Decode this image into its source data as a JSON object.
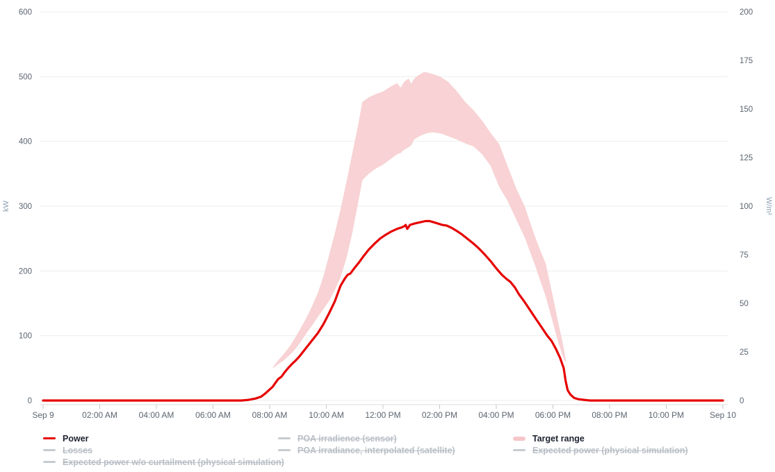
{
  "colors": {
    "power_line": "#e60000",
    "target_band": "#f8d2d4",
    "grid_line": "#ededed",
    "axis_line": "#dcdcdc",
    "axis_tick": "#c8c8c8",
    "tick_label": "#5b6570",
    "unit_label": "#8da0b4",
    "legend_active_text": "#1d2330",
    "legend_inactive_text": "#b9bfc6",
    "legend_inactive_swatch": "#c6cbd1"
  },
  "chart_data": {
    "type": "line",
    "title": "",
    "grid": true,
    "x": {
      "tick_labels": [
        "Sep 9",
        "02:00 AM",
        "04:00 AM",
        "06:00 AM",
        "08:00 AM",
        "10:00 AM",
        "12:00 PM",
        "02:00 PM",
        "04:00 PM",
        "06:00 PM",
        "08:00 PM",
        "10:00 PM",
        "Sep 10"
      ],
      "tick_hours": [
        0,
        2,
        4,
        6,
        8,
        10,
        12,
        14,
        16,
        18,
        20,
        22,
        24
      ],
      "range_hours": [
        0,
        24
      ]
    },
    "y_left": {
      "unit": "kW",
      "range": [
        0,
        600
      ],
      "ticks": [
        0,
        100,
        200,
        300,
        400,
        500,
        600
      ]
    },
    "y_right": {
      "unit": "W/m²",
      "range": [
        0,
        200
      ],
      "ticks": [
        0,
        25,
        50,
        75,
        100,
        125,
        150,
        175,
        200
      ]
    },
    "series": [
      {
        "name": "Power",
        "axis": "left",
        "unit": "kW",
        "color": "#e60000",
        "points": [
          [
            0,
            0
          ],
          [
            1,
            0
          ],
          [
            2,
            0
          ],
          [
            3,
            0
          ],
          [
            4,
            0
          ],
          [
            5,
            0
          ],
          [
            6,
            0
          ],
          [
            6.5,
            0
          ],
          [
            7,
            0
          ],
          [
            7.25,
            1
          ],
          [
            7.5,
            3
          ],
          [
            7.7,
            6
          ],
          [
            7.85,
            11
          ],
          [
            8,
            17
          ],
          [
            8.1,
            21
          ],
          [
            8.2,
            27
          ],
          [
            8.3,
            33
          ],
          [
            8.42,
            37
          ],
          [
            8.5,
            42
          ],
          [
            8.65,
            50
          ],
          [
            8.8,
            57
          ],
          [
            8.9,
            61
          ],
          [
            9.05,
            68
          ],
          [
            9.3,
            82
          ],
          [
            9.5,
            93
          ],
          [
            9.7,
            104
          ],
          [
            9.9,
            118
          ],
          [
            10.1,
            135
          ],
          [
            10.3,
            153
          ],
          [
            10.5,
            177
          ],
          [
            10.65,
            188
          ],
          [
            10.75,
            194
          ],
          [
            10.85,
            196
          ],
          [
            11,
            205
          ],
          [
            11.15,
            213
          ],
          [
            11.3,
            222
          ],
          [
            11.5,
            233
          ],
          [
            11.7,
            242
          ],
          [
            11.9,
            250
          ],
          [
            12.1,
            256
          ],
          [
            12.3,
            261
          ],
          [
            12.5,
            265
          ],
          [
            12.65,
            267
          ],
          [
            12.75,
            269
          ],
          [
            12.8,
            271
          ],
          [
            12.86,
            265
          ],
          [
            12.95,
            271
          ],
          [
            13.1,
            273
          ],
          [
            13.3,
            275
          ],
          [
            13.5,
            277
          ],
          [
            13.65,
            277
          ],
          [
            13.8,
            275
          ],
          [
            13.95,
            273
          ],
          [
            14.1,
            271
          ],
          [
            14.25,
            270
          ],
          [
            14.4,
            267
          ],
          [
            14.6,
            262
          ],
          [
            14.8,
            256
          ],
          [
            15,
            249
          ],
          [
            15.2,
            242
          ],
          [
            15.4,
            234
          ],
          [
            15.6,
            225
          ],
          [
            15.8,
            215
          ],
          [
            16,
            204
          ],
          [
            16.2,
            194
          ],
          [
            16.35,
            188
          ],
          [
            16.5,
            183
          ],
          [
            16.65,
            175
          ],
          [
            16.8,
            164
          ],
          [
            17,
            152
          ],
          [
            17.2,
            139
          ],
          [
            17.4,
            126
          ],
          [
            17.6,
            113
          ],
          [
            17.8,
            100
          ],
          [
            17.95,
            92
          ],
          [
            18.1,
            80
          ],
          [
            18.25,
            66
          ],
          [
            18.38,
            50
          ],
          [
            18.45,
            30
          ],
          [
            18.52,
            16
          ],
          [
            18.62,
            9
          ],
          [
            18.75,
            4
          ],
          [
            18.9,
            2
          ],
          [
            19.1,
            1
          ],
          [
            19.3,
            0
          ],
          [
            20,
            0
          ],
          [
            21,
            0
          ],
          [
            22,
            0
          ],
          [
            23,
            0
          ],
          [
            24,
            0
          ]
        ]
      }
    ],
    "bands": [
      {
        "name": "Target range",
        "axis": "left",
        "unit": "kW",
        "color": "#f8d2d4",
        "points": [
          [
            8.12,
            50,
            52
          ],
          [
            8.3,
            56,
            62
          ],
          [
            8.5,
            62,
            72
          ],
          [
            8.7,
            70,
            83
          ],
          [
            8.9,
            79,
            97
          ],
          [
            9.1,
            91,
            112
          ],
          [
            9.3,
            104,
            128
          ],
          [
            9.5,
            116,
            146
          ],
          [
            9.7,
            129,
            166
          ],
          [
            9.9,
            141,
            192
          ],
          [
            10.1,
            154,
            225
          ],
          [
            10.3,
            170,
            258
          ],
          [
            10.5,
            190,
            295
          ],
          [
            10.7,
            218,
            335
          ],
          [
            10.9,
            255,
            378
          ],
          [
            11.1,
            300,
            420
          ],
          [
            11.27,
            340,
            461
          ],
          [
            11.5,
            350,
            468
          ],
          [
            11.75,
            358,
            473
          ],
          [
            12,
            364,
            477
          ],
          [
            12.25,
            372,
            484
          ],
          [
            12.5,
            380,
            490
          ],
          [
            12.62,
            382,
            483
          ],
          [
            12.75,
            387,
            492
          ],
          [
            12.9,
            391,
            497
          ],
          [
            13,
            394,
            489
          ],
          [
            13.1,
            403,
            497
          ],
          [
            13.25,
            407,
            502
          ],
          [
            13.45,
            411,
            507
          ],
          [
            13.6,
            413,
            506
          ],
          [
            13.75,
            414,
            504
          ],
          [
            13.9,
            413,
            502
          ],
          [
            14.05,
            412,
            499
          ],
          [
            14.3,
            408,
            492
          ],
          [
            14.6,
            403,
            478
          ],
          [
            14.9,
            397,
            461
          ],
          [
            15.2,
            392,
            448
          ],
          [
            15.5,
            380,
            432
          ],
          [
            15.8,
            362,
            413
          ],
          [
            16.1,
            330,
            396
          ],
          [
            16.4,
            308,
            362
          ],
          [
            16.7,
            280,
            328
          ],
          [
            17,
            252,
            300
          ],
          [
            17.35,
            211,
            255
          ],
          [
            17.55,
            185,
            232
          ],
          [
            17.75,
            160,
            211
          ],
          [
            18,
            120,
            160
          ],
          [
            18.2,
            88,
            118
          ],
          [
            18.35,
            68,
            88
          ],
          [
            18.46,
            58,
            62
          ]
        ]
      }
    ]
  },
  "legend": {
    "columns": [
      {
        "items": [
          {
            "label": "Power",
            "active": true,
            "swatch": "line",
            "color": "#e60000"
          },
          {
            "label": "Losses",
            "active": false,
            "swatch": "line",
            "color": "#c6cbd1"
          },
          {
            "label": "Expected power w/o curtailment (physical simulation)",
            "active": false,
            "swatch": "line",
            "color": "#c6cbd1"
          }
        ]
      },
      {
        "items": [
          {
            "label": "POA irradience (sensor)",
            "active": false,
            "swatch": "line",
            "color": "#c6cbd1"
          },
          {
            "label": "POA irradiance, interpolated (satellite)",
            "active": false,
            "swatch": "line",
            "color": "#c6cbd1"
          }
        ]
      },
      {
        "items": [
          {
            "label": "Target range",
            "active": true,
            "swatch": "band",
            "color": "#f6c6c9"
          },
          {
            "label": "Expected power (physical simulation)",
            "active": false,
            "swatch": "line",
            "color": "#c6cbd1"
          }
        ]
      }
    ]
  }
}
